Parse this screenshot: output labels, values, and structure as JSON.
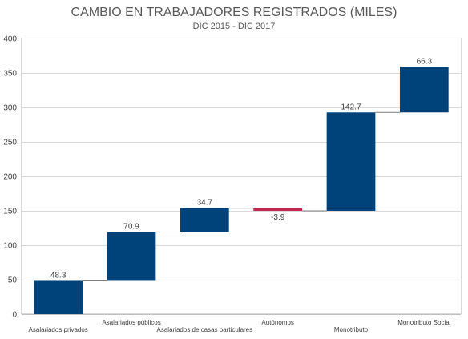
{
  "chart_data": {
    "type": "waterfall",
    "title": "CAMBIO EN TRABAJADORES REGISTRADOS (MILES)",
    "subtitle": "DIC 2015 - DIC 2017",
    "categories": [
      "Asalariados privados",
      "Asalariados públicos",
      "Asalariados de casas particulares",
      "Autónomos",
      "Monotributo",
      "Monotributo Social"
    ],
    "values": [
      48.3,
      70.9,
      34.7,
      -3.9,
      142.7,
      66.3
    ],
    "value_labels": [
      "48.3",
      "70.9",
      "34.7",
      "-3.9",
      "142.7",
      "66.3"
    ],
    "ylim": [
      0,
      400
    ],
    "yticks": [
      0,
      50,
      100,
      150,
      200,
      250,
      300,
      350,
      400
    ],
    "grid": true,
    "legend": "none",
    "colors": {
      "increase": "#00437A",
      "decrease": "#C0284F",
      "connector": "#7F7F7F",
      "grid": "#D9D9D9"
    }
  }
}
